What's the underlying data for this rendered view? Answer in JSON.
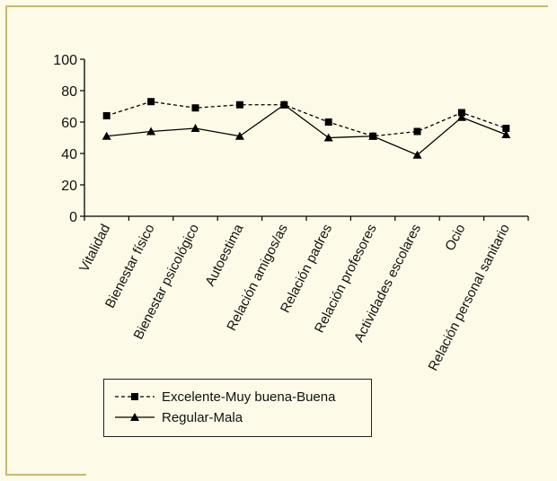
{
  "chart_data": {
    "type": "line",
    "categories": [
      "Vitalidad",
      "Bienestar físico",
      "Bienestar psicológico",
      "Autoestima",
      "Relación amigos/as",
      "Relación padres",
      "Relación profesores",
      "Actividades escolares",
      "Ocio",
      "Relación personal sanitario"
    ],
    "series": [
      {
        "name": "Excelente-Muy buena-Buena",
        "values": [
          64,
          73,
          69,
          71,
          71,
          60,
          51,
          54,
          66,
          56
        ],
        "marker": "square",
        "line_style": "dashed",
        "color": "#000000"
      },
      {
        "name": "Regular-Mala",
        "values": [
          51,
          54,
          56,
          51,
          71,
          50,
          51,
          39,
          63,
          52
        ],
        "marker": "triangle",
        "line_style": "solid",
        "color": "#000000"
      }
    ],
    "ylim": [
      0,
      100
    ],
    "yticks": [
      0,
      20,
      40,
      60,
      80,
      100
    ],
    "grid": false,
    "legend_position": "bottom-left",
    "title": "",
    "xlabel": "",
    "ylabel": ""
  },
  "colors": {
    "background": "#fdfbe7",
    "frame": "#c9b76e"
  }
}
